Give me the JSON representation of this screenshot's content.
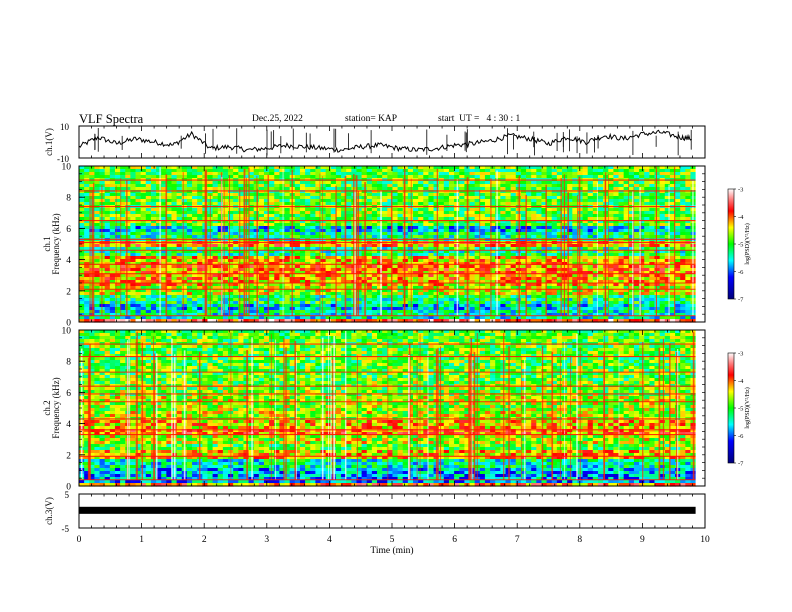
{
  "header": {
    "title": "VLF Spectra",
    "date": "Dec.25, 2022",
    "station": "station= KAP",
    "start": "start  UT =   4 : 30 : 1"
  },
  "chart_data": [
    {
      "type": "line",
      "panel": "ch1-waveform",
      "ylabel": "ch.1(V)",
      "ylim": [
        -10,
        10
      ],
      "ytick_labels": [
        "10",
        "-10"
      ],
      "xlim": [
        0,
        10
      ],
      "x": [
        0,
        0.3,
        0.6,
        0.9,
        1.2,
        1.5,
        1.8,
        2.1,
        2.4,
        2.7,
        3.0,
        3.3,
        3.6,
        3.9,
        4.2,
        4.5,
        4.8,
        5.1,
        5.4,
        5.7,
        6.0,
        6.3,
        6.6,
        6.9,
        7.2,
        7.5,
        7.8,
        8.1,
        8.4,
        8.7,
        9.0,
        9.3,
        9.6,
        9.8
      ],
      "values": [
        -3,
        3,
        -1,
        2,
        0,
        -2,
        5,
        -4,
        -3,
        -5,
        -4,
        -2,
        -3,
        -4,
        -5,
        -3,
        -2,
        -4,
        -5,
        -4,
        -2,
        -1,
        1,
        4,
        2,
        -1,
        3,
        0,
        4,
        2,
        5,
        6,
        3,
        2
      ]
    },
    {
      "type": "heatmap",
      "panel": "ch1-spectrogram",
      "ylabel": "ch.1 Frequency (kHz)",
      "ylim": [
        0,
        10
      ],
      "ytick_labels": [
        "0",
        "2",
        "4",
        "6",
        "8",
        "10"
      ],
      "xlim": [
        0,
        10
      ],
      "colorbar": {
        "label": "log(PSD)(V²/Hz)",
        "range": [
          -7,
          -3
        ],
        "tick_labels": [
          "-3",
          "-4",
          "-5",
          "-6",
          "-7"
        ]
      },
      "x_extent_min": 9.85,
      "frequency_levels_khz": [
        0,
        0.5,
        1,
        1.5,
        2,
        2.5,
        3,
        3.5,
        4,
        4.5,
        5,
        5.5,
        6,
        6.5,
        7,
        7.5,
        8,
        8.5,
        9,
        9.5,
        10
      ],
      "level_by_frequency": [
        -3.6,
        -5.4,
        -5.6,
        -5.2,
        -4.6,
        -4.3,
        -4.2,
        -4.1,
        -4.3,
        -5.2,
        -4.1,
        -5.3,
        -5.6,
        -4.9,
        -4.9,
        -4.9,
        -4.9,
        -4.9,
        -4.9,
        -4.9,
        -4.9
      ],
      "horizontal_lines_khz": [
        0.4,
        2.1,
        2.5,
        3.1,
        3.7,
        4.6,
        5.1,
        5.3,
        6.5,
        7.4,
        8.4,
        9.1
      ]
    },
    {
      "type": "heatmap",
      "panel": "ch2-spectrogram",
      "ylabel": "ch.2 Frequency (kHz)",
      "ylim": [
        0,
        10
      ],
      "ytick_labels": [
        "0",
        "2",
        "4",
        "6",
        "8",
        "10"
      ],
      "xlim": [
        0,
        10
      ],
      "colorbar": {
        "label": "log(PSD)(V²/Hz)",
        "range": [
          -7,
          -3
        ],
        "tick_labels": [
          "-3",
          "-4",
          "-5",
          "-6",
          "-7"
        ]
      },
      "x_extent_min": 9.85,
      "frequency_levels_khz": [
        0,
        0.5,
        1,
        1.5,
        2,
        2.5,
        3,
        3.5,
        4,
        4.5,
        5,
        5.5,
        6,
        6.5,
        7,
        7.5,
        8,
        8.5,
        9,
        9.5,
        10
      ],
      "level_by_frequency": [
        -4.0,
        -5.8,
        -5.7,
        -5.4,
        -4.3,
        -4.9,
        -4.6,
        -4.0,
        -4.3,
        -4.6,
        -4.7,
        -4.6,
        -4.8,
        -4.8,
        -4.9,
        -4.9,
        -4.9,
        -4.9,
        -4.9,
        -4.9,
        -4.9
      ],
      "horizontal_lines_khz": [
        0.4,
        1.9,
        3.3,
        3.6,
        4.3,
        5.4,
        5.9,
        6.4,
        7.3,
        8.3,
        9.1
      ]
    },
    {
      "type": "line",
      "panel": "ch3-waveform",
      "ylabel": "ch.3(V)",
      "ylim": [
        -5,
        5
      ],
      "ytick_labels": [
        "5",
        "-5"
      ],
      "xlim": [
        0,
        10
      ],
      "xlabel": "Time (min)",
      "xtick_labels": [
        "0",
        "1",
        "2",
        "3",
        "4",
        "5",
        "6",
        "7",
        "8",
        "9",
        "10"
      ],
      "x": [
        0,
        9.85
      ],
      "band": [
        -0.1,
        0.5
      ]
    }
  ]
}
